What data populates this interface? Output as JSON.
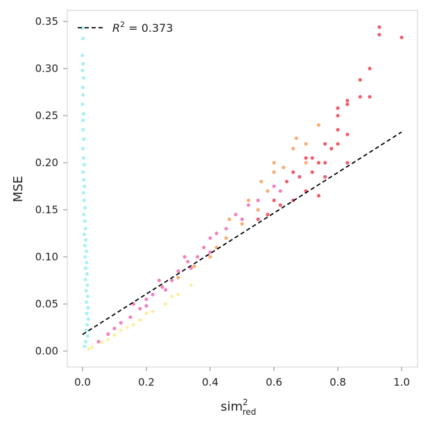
{
  "chart_data": {
    "type": "scatter",
    "xlabel": "sim",
    "xlabel_sup": "2",
    "xlabel_sub": "red",
    "ylabel": "MSE",
    "xlim": [
      -0.05,
      1.05
    ],
    "ylim": [
      -0.017,
      0.365
    ],
    "xticks": [
      "0.0",
      "0.2",
      "0.4",
      "0.6",
      "0.8",
      "1.0"
    ],
    "yticks": [
      "0.00",
      "0.05",
      "0.10",
      "0.15",
      "0.20",
      "0.25",
      "0.30",
      "0.35"
    ],
    "grid": false,
    "legend": {
      "placement": "top-left",
      "label_prefix": "R",
      "label_sup": "2",
      "label_rest": " = 0.373"
    },
    "fit_line": {
      "intercept": 0.0176,
      "slope": 0.215,
      "x_range": [
        0,
        1
      ],
      "style": "dashed",
      "color": "#000000"
    },
    "series": [
      {
        "color": "#3ee0e0",
        "points": [
          [
            0.0,
            0.343
          ],
          [
            0.002,
            0.332
          ],
          [
            0.0,
            0.314
          ],
          [
            0.002,
            0.305
          ],
          [
            0.0,
            0.298
          ],
          [
            0.003,
            0.29
          ],
          [
            0.001,
            0.28
          ],
          [
            0.002,
            0.272
          ],
          [
            0.0,
            0.262
          ],
          [
            0.003,
            0.252
          ],
          [
            0.001,
            0.245
          ],
          [
            0.002,
            0.235
          ],
          [
            0.004,
            0.225
          ],
          [
            0.001,
            0.215
          ],
          [
            0.003,
            0.205
          ],
          [
            0.005,
            0.198
          ],
          [
            0.002,
            0.19
          ],
          [
            0.004,
            0.182
          ],
          [
            0.006,
            0.175
          ],
          [
            0.003,
            0.168
          ],
          [
            0.005,
            0.16
          ],
          [
            0.008,
            0.152
          ],
          [
            0.004,
            0.145
          ],
          [
            0.007,
            0.138
          ],
          [
            0.009,
            0.13
          ],
          [
            0.005,
            0.124
          ],
          [
            0.01,
            0.118
          ],
          [
            0.007,
            0.112
          ],
          [
            0.012,
            0.106
          ],
          [
            0.008,
            0.1
          ],
          [
            0.013,
            0.094
          ],
          [
            0.01,
            0.088
          ],
          [
            0.014,
            0.082
          ],
          [
            0.009,
            0.076
          ],
          [
            0.015,
            0.07
          ],
          [
            0.011,
            0.064
          ],
          [
            0.016,
            0.058
          ],
          [
            0.012,
            0.052
          ],
          [
            0.017,
            0.046
          ],
          [
            0.013,
            0.04
          ],
          [
            0.018,
            0.034
          ],
          [
            0.014,
            0.028
          ],
          [
            0.012,
            0.022
          ],
          [
            0.016,
            0.016
          ],
          [
            0.01,
            0.01
          ],
          [
            0.006,
            0.005
          ]
        ]
      },
      {
        "color": "#fde98a",
        "points": [
          [
            0.03,
            0.004
          ],
          [
            0.06,
            0.009
          ],
          [
            0.1,
            0.017
          ],
          [
            0.14,
            0.025
          ],
          [
            0.18,
            0.033
          ],
          [
            0.22,
            0.042
          ],
          [
            0.26,
            0.05
          ],
          [
            0.3,
            0.06
          ],
          [
            0.34,
            0.07
          ],
          [
            0.12,
            0.022
          ],
          [
            0.2,
            0.04
          ],
          [
            0.28,
            0.058
          ],
          [
            0.02,
            0.002
          ],
          [
            0.08,
            0.012
          ],
          [
            0.16,
            0.028
          ]
        ]
      },
      {
        "color": "#ee5aa8",
        "points": [
          [
            0.05,
            0.01
          ],
          [
            0.08,
            0.018
          ],
          [
            0.1,
            0.024
          ],
          [
            0.12,
            0.03
          ],
          [
            0.15,
            0.036
          ],
          [
            0.18,
            0.045
          ],
          [
            0.2,
            0.055
          ],
          [
            0.22,
            0.06
          ],
          [
            0.25,
            0.068
          ],
          [
            0.28,
            0.075
          ],
          [
            0.3,
            0.085
          ],
          [
            0.33,
            0.095
          ],
          [
            0.36,
            0.1
          ],
          [
            0.38,
            0.11
          ],
          [
            0.4,
            0.12
          ],
          [
            0.42,
            0.125
          ],
          [
            0.45,
            0.13
          ],
          [
            0.48,
            0.145
          ],
          [
            0.5,
            0.14
          ],
          [
            0.52,
            0.155
          ],
          [
            0.55,
            0.16
          ],
          [
            0.6,
            0.175
          ],
          [
            0.62,
            0.17
          ],
          [
            0.16,
            0.05
          ],
          [
            0.24,
            0.075
          ],
          [
            0.32,
            0.1
          ],
          [
            0.2,
            0.048
          ],
          [
            0.26,
            0.065
          ],
          [
            0.34,
            0.088
          ],
          [
            0.4,
            0.105
          ]
        ]
      },
      {
        "color": "#f7924a",
        "points": [
          [
            0.3,
            0.078
          ],
          [
            0.35,
            0.09
          ],
          [
            0.4,
            0.1
          ],
          [
            0.45,
            0.12
          ],
          [
            0.5,
            0.135
          ],
          [
            0.55,
            0.15
          ],
          [
            0.58,
            0.17
          ],
          [
            0.6,
            0.2
          ],
          [
            0.63,
            0.195
          ],
          [
            0.66,
            0.215
          ],
          [
            0.7,
            0.2
          ],
          [
            0.74,
            0.24
          ],
          [
            0.46,
            0.14
          ],
          [
            0.52,
            0.16
          ],
          [
            0.56,
            0.18
          ],
          [
            0.67,
            0.226
          ],
          [
            0.42,
            0.11
          ],
          [
            0.6,
            0.19
          ],
          [
            0.7,
            0.22
          ]
        ]
      },
      {
        "color": "#e8283c",
        "points": [
          [
            0.55,
            0.14
          ],
          [
            0.58,
            0.145
          ],
          [
            0.6,
            0.16
          ],
          [
            0.62,
            0.155
          ],
          [
            0.64,
            0.18
          ],
          [
            0.66,
            0.16
          ],
          [
            0.68,
            0.185
          ],
          [
            0.7,
            0.17
          ],
          [
            0.72,
            0.19
          ],
          [
            0.74,
            0.2
          ],
          [
            0.76,
            0.185
          ],
          [
            0.78,
            0.215
          ],
          [
            0.8,
            0.22
          ],
          [
            0.8,
            0.235
          ],
          [
            0.8,
            0.25
          ],
          [
            0.8,
            0.258
          ],
          [
            0.83,
            0.23
          ],
          [
            0.83,
            0.262
          ],
          [
            0.83,
            0.266
          ],
          [
            0.87,
            0.27
          ],
          [
            0.87,
            0.288
          ],
          [
            0.9,
            0.27
          ],
          [
            0.9,
            0.3
          ],
          [
            0.93,
            0.336
          ],
          [
            0.93,
            0.344
          ],
          [
            1.0,
            0.333
          ],
          [
            0.76,
            0.22
          ],
          [
            0.72,
            0.205
          ],
          [
            0.74,
            0.165
          ],
          [
            0.66,
            0.19
          ],
          [
            0.7,
            0.205
          ],
          [
            0.76,
            0.2
          ],
          [
            0.83,
            0.2
          ]
        ]
      }
    ]
  }
}
